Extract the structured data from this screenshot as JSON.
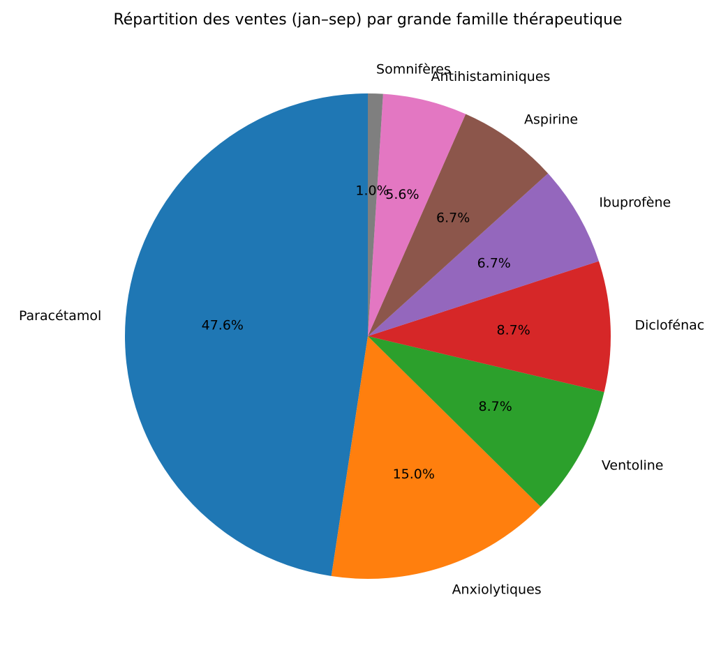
{
  "chart_data": {
    "type": "pie",
    "title": "Répartition des ventes (jan–sep) par grande famille thérapeutique",
    "categories": [
      "Paracétamol",
      "Anxiolytiques",
      "Ventoline",
      "Diclofénac",
      "Ibuprofène",
      "Aspirine",
      "Antihistaminiques",
      "Somnifères"
    ],
    "values": [
      47.6,
      15.0,
      8.7,
      8.7,
      6.7,
      6.7,
      5.6,
      1.0
    ],
    "value_labels": [
      "47.6%",
      "15.0%",
      "8.7%",
      "8.7%",
      "6.7%",
      "6.7%",
      "5.6%",
      "1.0%"
    ],
    "colors": [
      "#1f77b4",
      "#ff7f0e",
      "#2ca02c",
      "#d62728",
      "#9467bd",
      "#8c564b",
      "#e377c2",
      "#7f7f7f"
    ],
    "start_angle_deg": 90,
    "direction": "counterclockwise",
    "legend": "none"
  }
}
